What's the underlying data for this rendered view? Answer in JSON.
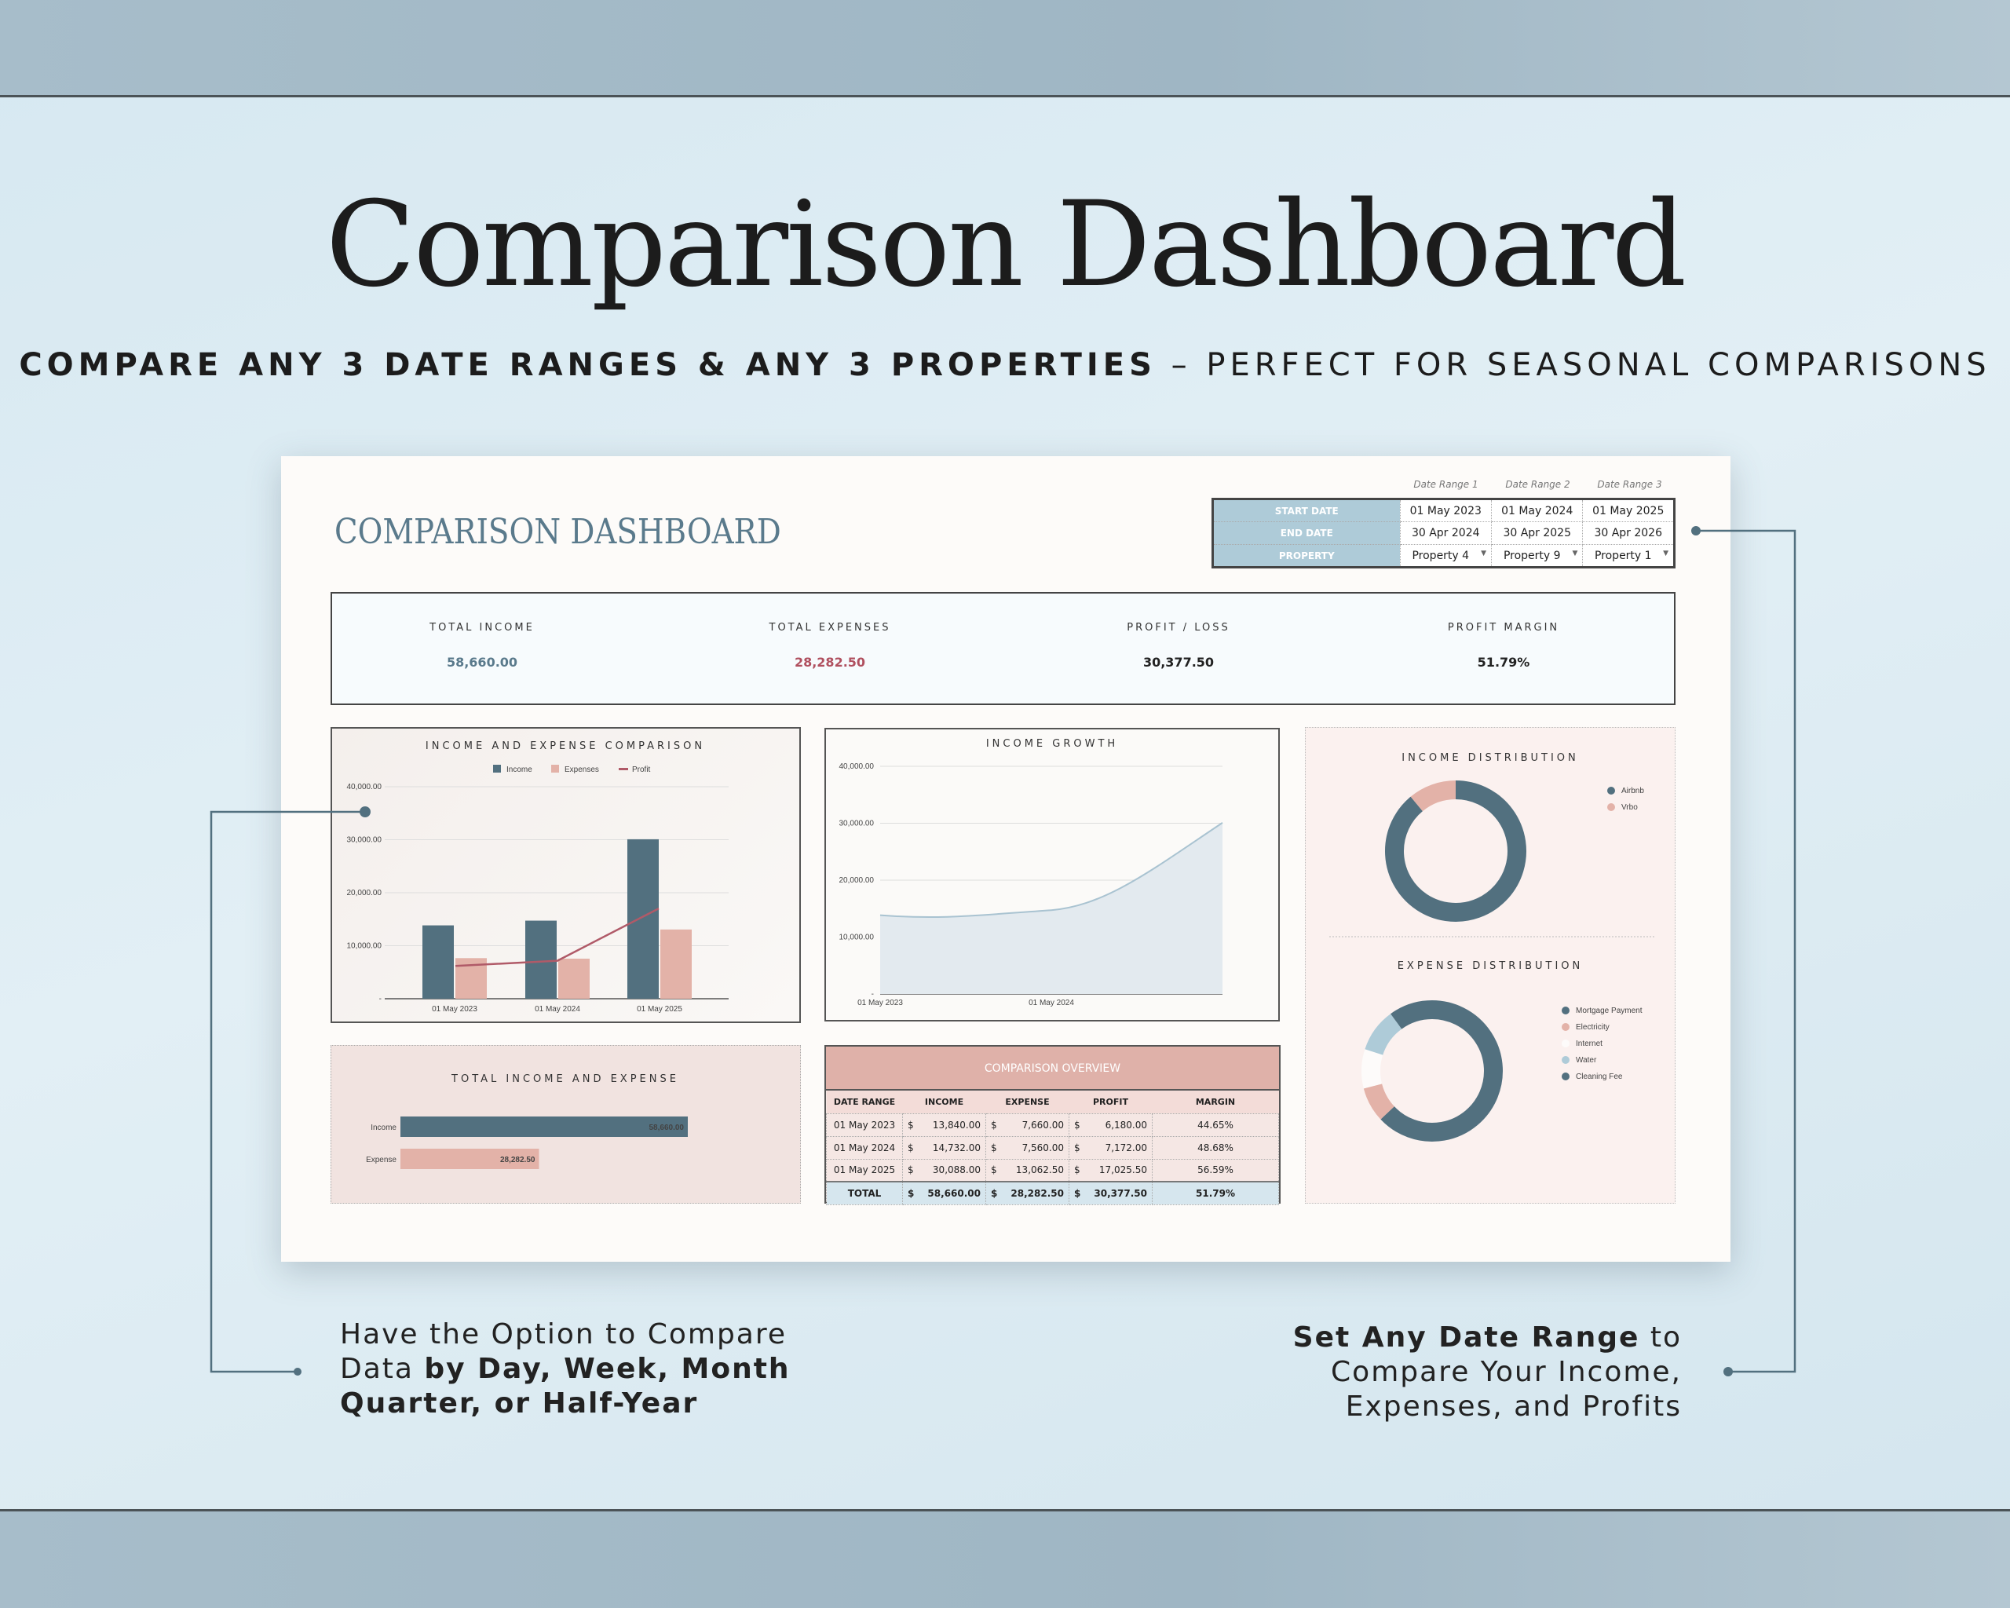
{
  "hero": {
    "title": "Comparison Dashboard",
    "subtitle_bold": "COMPARE ANY 3 DATE RANGES & ANY 3 PROPERTIES",
    "subtitle_rest": " – PERFECT FOR SEASONAL COMPARISONS"
  },
  "dashboard": {
    "title": "COMPARISON DASHBOARD"
  },
  "date_ranges": {
    "headers": [
      "Date Range 1",
      "Date Range 2",
      "Date Range 3"
    ],
    "rows": [
      {
        "label": "START DATE",
        "values": [
          "01 May 2023",
          "01 May 2024",
          "01 May 2025"
        ]
      },
      {
        "label": "END DATE",
        "values": [
          "30 Apr 2024",
          "30 Apr 2025",
          "30 Apr 2026"
        ]
      },
      {
        "label": "PROPERTY",
        "values": [
          "Property 4",
          "Property 9",
          "Property 1"
        ]
      }
    ]
  },
  "kpis": [
    {
      "label": "TOTAL INCOME",
      "value": "58,660.00",
      "color": "#5a7a8c"
    },
    {
      "label": "TOTAL EXPENSES",
      "value": "28,282.50",
      "color": "#b0505f"
    },
    {
      "label": "PROFIT / LOSS",
      "value": "30,377.50",
      "color": "#222222"
    },
    {
      "label": "PROFIT MARGIN",
      "value": "51.79%",
      "color": "#222222"
    }
  ],
  "colors": {
    "income": "#52707f",
    "expense": "#e3b2a8",
    "profit": "#b05a68",
    "water": "#aecbd8",
    "internet": "#fdfbfa"
  },
  "chart_data": [
    {
      "type": "bar",
      "title": "INCOME AND EXPENSE COMPARISON",
      "categories": [
        "01 May 2023",
        "01 May 2024",
        "01 May 2025"
      ],
      "series": [
        {
          "name": "Income",
          "type": "bar",
          "values": [
            13840,
            14732,
            30088
          ]
        },
        {
          "name": "Expenses",
          "type": "bar",
          "values": [
            7660,
            7560,
            13062.5
          ]
        },
        {
          "name": "Profit",
          "type": "line",
          "values": [
            6180,
            7172,
            17025.5
          ]
        }
      ],
      "yticks": [
        "-",
        "10,000.00",
        "20,000.00",
        "30,000.00",
        "40,000.00"
      ],
      "ylim": [
        0,
        40000
      ],
      "legend": "top",
      "grid": true
    },
    {
      "type": "area",
      "title": "INCOME GROWTH",
      "categories": [
        "01 May 2023",
        "01 May 2024",
        "01 May 2025"
      ],
      "xtick_labels": [
        "01 May 2023",
        "01 May 2024"
      ],
      "values": [
        13840,
        14732,
        30088
      ],
      "yticks": [
        "-",
        "10,000.00",
        "20,000.00",
        "30,000.00",
        "40,000.00"
      ],
      "ylim": [
        0,
        40000
      ],
      "grid": true
    },
    {
      "type": "pie",
      "title": "INCOME DISTRIBUTION",
      "donut": true,
      "labels": [
        "Airbnb",
        "Vrbo"
      ],
      "values": [
        0.89,
        0.11
      ],
      "legend": "right"
    },
    {
      "type": "pie",
      "title": "EXPENSE DISTRIBUTION",
      "donut": true,
      "labels": [
        "Mortgage Payment",
        "Electricity",
        "Internet",
        "Water",
        "Cleaning Fee"
      ],
      "values": [
        0.63,
        0.08,
        0.09,
        0.1,
        0.1
      ],
      "legend": "right"
    },
    {
      "type": "bar",
      "orientation": "horizontal",
      "title": "TOTAL INCOME AND EXPENSE",
      "categories": [
        "Income",
        "Expense"
      ],
      "values": [
        58660,
        28282.5
      ],
      "data_labels": [
        "58,660.00",
        "28,282.50"
      ]
    }
  ],
  "overview": {
    "title": "COMPARISON OVERVIEW",
    "columns": [
      "DATE RANGE",
      "INCOME",
      "EXPENSE",
      "PROFIT",
      "MARGIN"
    ],
    "currency": "$",
    "rows": [
      [
        "01 May 2023",
        "13,840.00",
        "7,660.00",
        "6,180.00",
        "44.65%"
      ],
      [
        "01 May 2024",
        "14,732.00",
        "7,560.00",
        "7,172.00",
        "48.68%"
      ],
      [
        "01 May 2025",
        "30,088.00",
        "13,062.50",
        "17,025.50",
        "56.59%"
      ]
    ],
    "total": [
      "TOTAL",
      "58,660.00",
      "28,282.50",
      "30,377.50",
      "51.79%"
    ]
  },
  "callouts": {
    "left": {
      "l1": "Have the Option to Compare",
      "l2a": "Data ",
      "l2b": "by Day, Week, Month",
      "l3": "Quarter, or Half-Year"
    },
    "right": {
      "l1a": "Set Any Date Range",
      "l1b": " to",
      "l2": "Compare Your Income,",
      "l3": "Expenses, and Profits"
    }
  }
}
